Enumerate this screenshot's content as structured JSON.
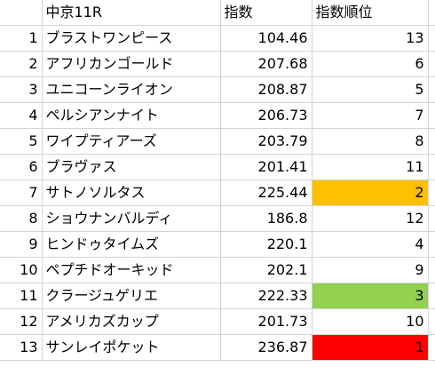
{
  "header": {
    "race": "中京11R",
    "index": "指数",
    "rank": "指数順位"
  },
  "rows": [
    {
      "no": "1",
      "name": "ブラストワンピース",
      "index": "104.46",
      "rank": "13",
      "highlight": ""
    },
    {
      "no": "2",
      "name": "アフリカンゴールド",
      "index": "207.68",
      "rank": "6",
      "highlight": ""
    },
    {
      "no": "3",
      "name": "ユニコーンライオン",
      "index": "208.87",
      "rank": "5",
      "highlight": ""
    },
    {
      "no": "4",
      "name": "ペルシアンナイト",
      "index": "206.73",
      "rank": "7",
      "highlight": ""
    },
    {
      "no": "5",
      "name": "ワイプティアーズ",
      "index": "203.79",
      "rank": "8",
      "highlight": ""
    },
    {
      "no": "6",
      "name": "ブラヴァス",
      "index": "201.41",
      "rank": "11",
      "highlight": ""
    },
    {
      "no": "7",
      "name": "サトノソルタス",
      "index": "225.44",
      "rank": "2",
      "highlight": "#FFC000"
    },
    {
      "no": "8",
      "name": "ショウナンバルディ",
      "index": "186.8",
      "rank": "12",
      "highlight": ""
    },
    {
      "no": "9",
      "name": "ヒンドゥタイムズ",
      "index": "220.1",
      "rank": "4",
      "highlight": ""
    },
    {
      "no": "10",
      "name": "ペプチドオーキッド",
      "index": "202.1",
      "rank": "9",
      "highlight": ""
    },
    {
      "no": "11",
      "name": "クラージュゲリエ",
      "index": "222.33",
      "rank": "3",
      "highlight": "#92D050"
    },
    {
      "no": "12",
      "name": "アメリカズカップ",
      "index": "201.73",
      "rank": "10",
      "highlight": ""
    },
    {
      "no": "13",
      "name": "サンレイポケット",
      "index": "236.87",
      "rank": "1",
      "highlight": "#FF0000"
    }
  ]
}
